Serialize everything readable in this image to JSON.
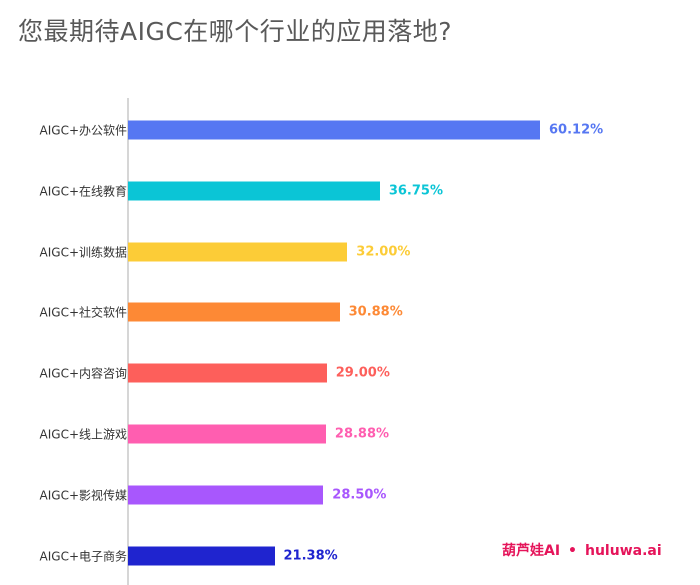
{
  "chart_data": {
    "type": "bar",
    "orientation": "horizontal",
    "title": "您最期待AIGC在哪个行业的应用落地?",
    "categories": [
      "AIGC+办公软件",
      "AIGC+在线教育",
      "AIGC+训练数据",
      "AIGC+社交软件",
      "AIGC+内容咨询",
      "AIGC+线上游戏",
      "AIGC+影视传媒",
      "AIGC+电子商务"
    ],
    "values": [
      60.12,
      36.75,
      32.0,
      30.88,
      29.0,
      28.88,
      28.5,
      21.38
    ],
    "value_labels": [
      "60.12%",
      "36.75%",
      "32.00%",
      "30.88%",
      "29.00%",
      "28.88%",
      "28.50%",
      "21.38%"
    ],
    "colors": [
      "#5677f2",
      "#0bc5d6",
      "#fccc37",
      "#fd8935",
      "#fd5f5b",
      "#ff5eb0",
      "#a857fd",
      "#1f24cf"
    ],
    "xlim": [
      0,
      75
    ],
    "grid": false,
    "legend": "none"
  },
  "watermark": {
    "brand": "葫芦娃AI",
    "dot": "•",
    "site": "huluwa.ai",
    "brand_color": "#e5145a",
    "site_color": "#e5145a"
  }
}
